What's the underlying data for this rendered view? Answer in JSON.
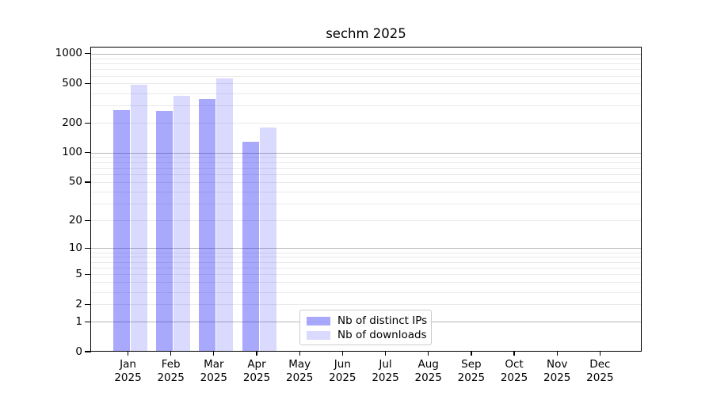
{
  "title": "sechm 2025",
  "chart_data": {
    "type": "bar",
    "title": "sechm 2025",
    "subtitle": "",
    "xlabel": "",
    "ylabel": "",
    "y_scale": "log1p",
    "ylim": [
      0,
      1175
    ],
    "yticks": [
      0,
      1,
      2,
      5,
      10,
      20,
      50,
      100,
      200,
      500,
      1000
    ],
    "major_gridlines": [
      1,
      10,
      100,
      1000
    ],
    "minor_gridlines": [
      2,
      3,
      4,
      5,
      6,
      7,
      8,
      9,
      20,
      30,
      40,
      50,
      60,
      70,
      80,
      90,
      200,
      300,
      400,
      500,
      600,
      700,
      800,
      900
    ],
    "grid": "horizontal",
    "categories": [
      "Jan",
      "Feb",
      "Mar",
      "Apr",
      "May",
      "Jun",
      "Jul",
      "Aug",
      "Sep",
      "Oct",
      "Nov",
      "Dec"
    ],
    "x_year_line": "2025",
    "series": [
      {
        "name": "Nb of distinct IPs",
        "color": "#0505F559",
        "values": [
          270,
          266,
          347,
          130,
          null,
          null,
          null,
          null,
          null,
          null,
          null,
          null
        ]
      },
      {
        "name": "Nb of downloads",
        "color": "#0505F526",
        "values": [
          485,
          374,
          559,
          181,
          null,
          null,
          null,
          null,
          null,
          null,
          null,
          null
        ]
      }
    ],
    "legend_position": "lower-center",
    "colors": {
      "spine": "#000000",
      "grid_major": "#b8b8b8",
      "grid_minor": "#eaeaea",
      "legend_border": "#cccccc",
      "background": "#ffffff"
    }
  }
}
